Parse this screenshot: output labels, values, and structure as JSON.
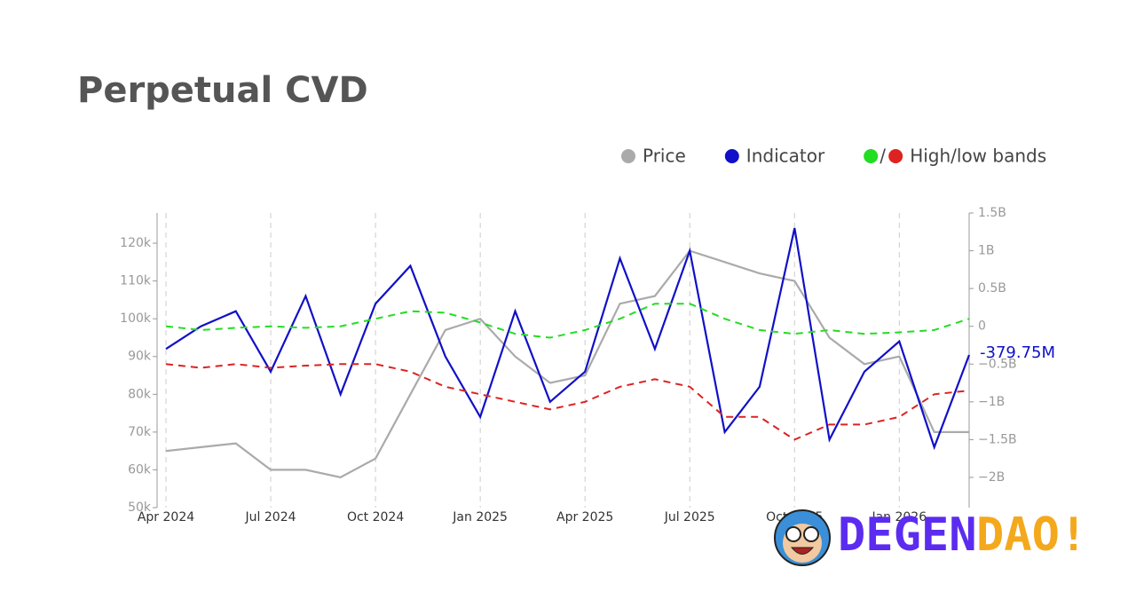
{
  "chart_data": {
    "type": "line",
    "title": "Perpetual CVD",
    "bands_label": "High/low bands",
    "x": [
      "2024-04",
      "2024-05",
      "2024-06",
      "2024-07",
      "2024-08",
      "2024-09",
      "2024-10",
      "2024-11",
      "2024-12",
      "2025-01",
      "2025-02",
      "2025-03",
      "2025-04",
      "2025-05",
      "2025-06",
      "2025-07",
      "2025-08",
      "2025-09",
      "2025-10",
      "2025-11",
      "2025-12",
      "2026-01",
      "2026-02",
      "2026-03"
    ],
    "xlim": [
      "2024-04",
      "2026-03"
    ],
    "xticks": [
      {
        "value": "2024-04",
        "label": "Apr 2024"
      },
      {
        "value": "2024-07",
        "label": "Jul 2024"
      },
      {
        "value": "2024-10",
        "label": "Oct 2024"
      },
      {
        "value": "2025-01",
        "label": "Jan 2025"
      },
      {
        "value": "2025-04",
        "label": "Apr 2025"
      },
      {
        "value": "2025-07",
        "label": "Jul 2025"
      },
      {
        "value": "2025-10",
        "label": "Oct 2025"
      },
      {
        "value": "2026-01",
        "label": "Jan 2026"
      }
    ],
    "ylim": [
      50000,
      128000
    ],
    "yticks": [
      {
        "value": 50000,
        "label": "50k"
      },
      {
        "value": 60000,
        "label": "60k"
      },
      {
        "value": 70000,
        "label": "70k"
      },
      {
        "value": 80000,
        "label": "80k"
      },
      {
        "value": 90000,
        "label": "90k"
      },
      {
        "value": 100000,
        "label": "100k"
      },
      {
        "value": 110000,
        "label": "110k"
      },
      {
        "value": 120000,
        "label": "120k"
      }
    ],
    "y2lim": [
      -2400000000,
      1500000000
    ],
    "y2ticks": [
      {
        "value": -2000000000,
        "label": "−2B"
      },
      {
        "value": -1500000000,
        "label": "−1.5B"
      },
      {
        "value": -1000000000,
        "label": "−1B"
      },
      {
        "value": -500000000,
        "label": "−0.5B"
      },
      0,
      {
        "value": 500000000,
        "label": "0.5B"
      },
      {
        "value": 1000000000,
        "label": "1B"
      },
      {
        "value": 1500000000,
        "label": "1.5B"
      }
    ],
    "series": [
      {
        "name": "Price",
        "color": "#aaaaaa",
        "axis": "y",
        "values": [
          65000,
          66000,
          67000,
          60000,
          60000,
          58000,
          63000,
          80000,
          97000,
          100000,
          90000,
          83000,
          85000,
          104000,
          106000,
          118000,
          115000,
          112000,
          110000,
          95000,
          88000,
          90000,
          70000,
          70000
        ]
      },
      {
        "name": "Indicator",
        "color": "#1010c8",
        "axis": "y2",
        "values": [
          -300000000,
          0,
          200000000,
          -600000000,
          400000000,
          -900000000,
          300000000,
          800000000,
          -400000000,
          -1200000000,
          200000000,
          -1000000000,
          -600000000,
          900000000,
          -300000000,
          1000000000,
          -1400000000,
          -800000000,
          1300000000,
          -1500000000,
          -600000000,
          -200000000,
          -1600000000,
          -379750000
        ],
        "value_labels": [
          null,
          null,
          null,
          null,
          null,
          null,
          null,
          null,
          null,
          null,
          null,
          null,
          null,
          null,
          null,
          null,
          null,
          null,
          null,
          null,
          null,
          null,
          null,
          "-379.75M"
        ]
      },
      {
        "color": "#22dd22",
        "axis": "y2",
        "dash": true,
        "values": [
          0,
          -50000000,
          -20000000,
          0,
          -20000000,
          0,
          100000000,
          200000000,
          180000000,
          50000000,
          -100000000,
          -150000000,
          -50000000,
          100000000,
          300000000,
          300000000,
          100000000,
          -50000000,
          -100000000,
          -50000000,
          -100000000,
          -80000000,
          -50000000,
          100000000
        ]
      },
      {
        "color": "#dd2222",
        "axis": "y2",
        "dash": true,
        "values": [
          -500000000,
          -550000000,
          -500000000,
          -550000000,
          -520000000,
          -500000000,
          -500000000,
          -600000000,
          -800000000,
          -900000000,
          -1000000000,
          -1100000000,
          -1000000000,
          -800000000,
          -700000000,
          -800000000,
          -1200000000,
          -1200000000,
          -1500000000,
          -1300000000,
          -1300000000,
          -1200000000,
          -900000000,
          -850000000
        ]
      }
    ],
    "watermark": {
      "first": "DEGEN",
      "second": "DAO!"
    }
  }
}
